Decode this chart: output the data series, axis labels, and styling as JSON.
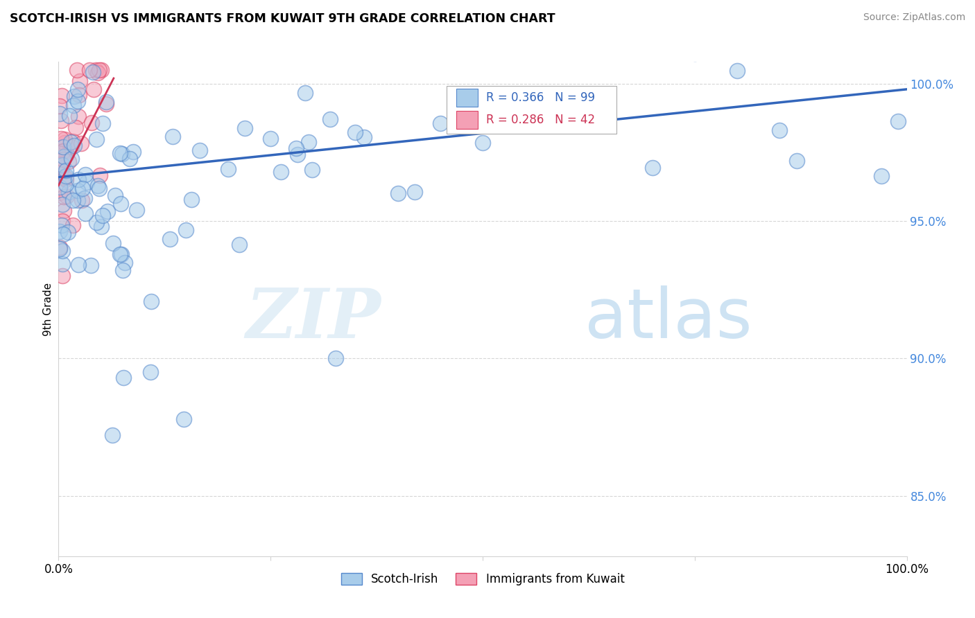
{
  "title": "SCOTCH-IRISH VS IMMIGRANTS FROM KUWAIT 9TH GRADE CORRELATION CHART",
  "source_text": "Source: ZipAtlas.com",
  "ylabel": "9th Grade",
  "xlim": [
    0.0,
    1.0
  ],
  "ylim": [
    0.828,
    1.008
  ],
  "yticks": [
    0.85,
    0.9,
    0.95,
    1.0
  ],
  "ytick_labels": [
    "85.0%",
    "90.0%",
    "95.0%",
    "100.0%"
  ],
  "xticks": [
    0.0,
    0.25,
    0.5,
    0.75,
    1.0
  ],
  "xtick_labels": [
    "0.0%",
    "",
    "",
    "",
    "100.0%"
  ],
  "blue_label": "Scotch-Irish",
  "pink_label": "Immigrants from Kuwait",
  "blue_R": 0.366,
  "blue_N": 99,
  "pink_R": 0.286,
  "pink_N": 42,
  "blue_fill": "#A8CCEA",
  "pink_fill": "#F4A0B5",
  "blue_edge": "#5588CC",
  "pink_edge": "#DD4466",
  "blue_line": "#3366BB",
  "pink_line": "#CC3355",
  "watermark_zip": "ZIP",
  "watermark_atlas": "atlas",
  "blue_line_x0": 0.0,
  "blue_line_y0": 0.966,
  "blue_line_x1": 1.0,
  "blue_line_y1": 0.998,
  "pink_line_x0": 0.0,
  "pink_line_y0": 0.963,
  "pink_line_x1": 0.065,
  "pink_line_y1": 1.002
}
